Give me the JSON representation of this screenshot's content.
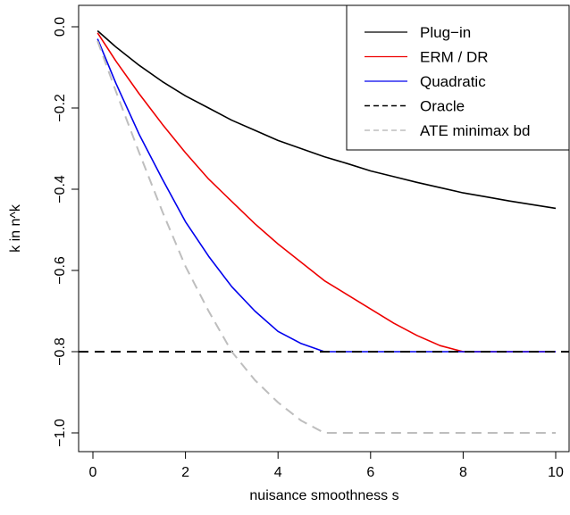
{
  "chart_data": {
    "type": "line",
    "title": "",
    "xlabel": "nuisance smoothness s",
    "ylabel": "k in n^k",
    "xlim": [
      0,
      10
    ],
    "ylim": [
      -1.07,
      0.03
    ],
    "x_ticks": [
      0,
      2,
      4,
      6,
      8,
      10
    ],
    "x_tick_labels": [
      "0",
      "2",
      "4",
      "6",
      "8",
      "10"
    ],
    "y_ticks": [
      0.0,
      -0.2,
      -0.4,
      -0.6,
      -0.8,
      -1.0
    ],
    "y_tick_labels": [
      "0.0",
      "−0.2",
      "−0.4",
      "−0.6",
      "−0.8",
      "−1.0"
    ],
    "grid": false,
    "legend_position": "top-right",
    "x": [
      0.1,
      0.5,
      1,
      1.5,
      2,
      2.5,
      3,
      3.5,
      4,
      4.5,
      5,
      5.5,
      6,
      6.5,
      7,
      7.5,
      8,
      8.5,
      9,
      9.5,
      10
    ],
    "series": [
      {
        "name": "Plug−in",
        "color": "#000000",
        "dash": "solid",
        "values": [
          -0.01,
          -0.05,
          -0.095,
          -0.135,
          -0.17,
          -0.2,
          -0.23,
          -0.255,
          -0.28,
          -0.3,
          -0.32,
          -0.337,
          -0.355,
          -0.369,
          -0.383,
          -0.396,
          -0.409,
          -0.419,
          -0.429,
          -0.438,
          -0.447
        ]
      },
      {
        "name": "ERM / DR",
        "color": "#ee0000",
        "dash": "solid",
        "values": [
          -0.015,
          -0.085,
          -0.165,
          -0.24,
          -0.31,
          -0.375,
          -0.43,
          -0.485,
          -0.535,
          -0.58,
          -0.625,
          -0.66,
          -0.695,
          -0.73,
          -0.76,
          -0.785,
          -0.8,
          -0.8,
          -0.8,
          -0.8,
          -0.8
        ]
      },
      {
        "name": "Quadratic",
        "color": "#0000ee",
        "dash": "solid",
        "values": [
          -0.03,
          -0.14,
          -0.265,
          -0.375,
          -0.48,
          -0.565,
          -0.64,
          -0.7,
          -0.75,
          -0.78,
          -0.8,
          -0.8,
          -0.8,
          -0.8,
          -0.8,
          -0.8,
          -0.8,
          -0.8,
          -0.8,
          -0.8,
          -0.8
        ]
      },
      {
        "name": "Oracle",
        "color": "#000000",
        "dash": "dashed",
        "values": [
          -0.8,
          -0.8,
          -0.8,
          -0.8,
          -0.8,
          -0.8,
          -0.8,
          -0.8,
          -0.8,
          -0.8,
          -0.8,
          -0.8,
          -0.8,
          -0.8,
          -0.8,
          -0.8,
          -0.8,
          -0.8,
          -0.8,
          -0.8,
          -0.8
        ]
      },
      {
        "name": "ATE minimax bd",
        "color": "#bebebe",
        "dash": "dashed",
        "values": [
          -0.035,
          -0.16,
          -0.31,
          -0.455,
          -0.59,
          -0.7,
          -0.8,
          -0.87,
          -0.925,
          -0.97,
          -1.0,
          -1.0,
          -1.0,
          -1.0,
          -1.0,
          -1.0,
          -1.0,
          -1.0,
          -1.0,
          -1.0,
          -1.0
        ]
      }
    ]
  }
}
